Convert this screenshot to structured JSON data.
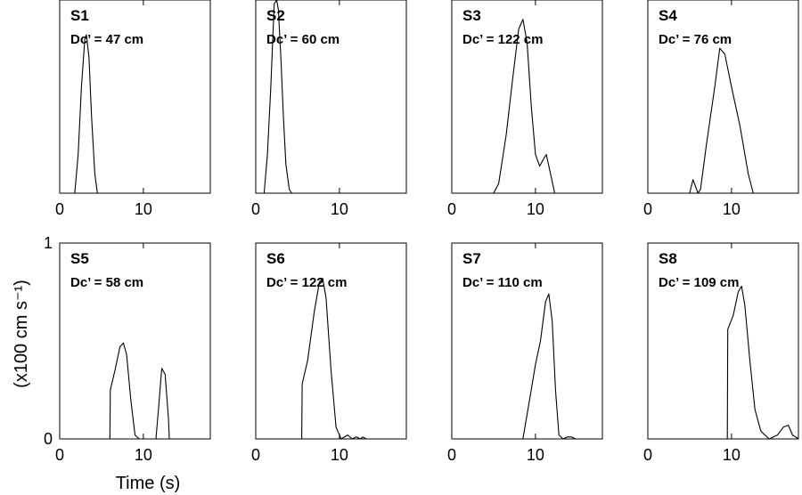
{
  "chart_data": {
    "type": "line",
    "xlabel": "Time (s)",
    "ylabel": "(x100 cm s⁻¹)",
    "xlim": [
      0,
      18
    ],
    "ylim": [
      0,
      1
    ],
    "xticks": [
      0,
      10
    ],
    "yticks": [
      0,
      1
    ],
    "grid": false,
    "panels": [
      {
        "title": "S1",
        "subtitle": "Dc’ = 47 cm",
        "x": [
          0,
          1.8,
          2.2,
          2.6,
          3.0,
          3.2,
          3.5,
          3.8,
          4.2,
          4.5,
          18
        ],
        "y": [
          0,
          0,
          0.2,
          0.55,
          0.8,
          0.82,
          0.7,
          0.4,
          0.1,
          0,
          0
        ]
      },
      {
        "title": "S2",
        "subtitle": "Dc’ = 60 cm",
        "x": [
          0,
          1.0,
          1.4,
          1.8,
          2.2,
          2.5,
          2.7,
          3.0,
          3.3,
          3.6,
          4.0,
          4.3,
          18
        ],
        "y": [
          0,
          0,
          0.2,
          0.55,
          0.98,
          1.0,
          0.95,
          0.7,
          0.4,
          0.15,
          0.02,
          0,
          0
        ]
      },
      {
        "title": "S3",
        "subtitle": "Dc’ =  122 cm",
        "x": [
          0,
          5.0,
          5.6,
          6.5,
          7.3,
          8.0,
          8.5,
          9.0,
          9.5,
          10.0,
          10.5,
          11.0,
          11.3,
          11.8,
          12.3,
          18
        ],
        "y": [
          0,
          0,
          0.05,
          0.3,
          0.6,
          0.85,
          0.9,
          0.78,
          0.45,
          0.2,
          0.14,
          0.18,
          0.2,
          0.1,
          0,
          0
        ]
      },
      {
        "title": "S4",
        "subtitle": "Dc’ = 76 cm",
        "x": [
          0,
          5.0,
          5.4,
          6.0,
          6.3,
          7.0,
          8.0,
          8.6,
          9.2,
          10.0,
          11.0,
          12.0,
          12.6,
          18
        ],
        "y": [
          0,
          0,
          0.07,
          0,
          0.02,
          0.25,
          0.55,
          0.75,
          0.72,
          0.55,
          0.35,
          0.1,
          0,
          0
        ]
      },
      {
        "title": "S5",
        "subtitle": "Dc’ = 58 cm",
        "x": [
          0,
          6.0,
          6.05,
          6.6,
          7.2,
          7.6,
          8.0,
          8.5,
          9.0,
          9.5,
          11.5,
          11.8,
          12.2,
          12.6,
          13.0,
          13.1,
          18
        ],
        "y": [
          0,
          0,
          0.25,
          0.35,
          0.47,
          0.49,
          0.43,
          0.2,
          0.02,
          0,
          0,
          0.15,
          0.36,
          0.33,
          0.1,
          0,
          0
        ]
      },
      {
        "title": "S6",
        "subtitle": "Dc’ = 122 cm",
        "x": [
          0,
          5.5,
          5.55,
          6.2,
          7.0,
          7.6,
          8.0,
          8.4,
          9.0,
          9.6,
          10.2,
          11.0,
          11.5,
          12.0,
          12.5,
          12.8,
          13.2,
          18
        ],
        "y": [
          0,
          0,
          0.28,
          0.4,
          0.65,
          0.8,
          0.82,
          0.72,
          0.35,
          0.06,
          0,
          0.02,
          0,
          0.01,
          0,
          0.01,
          0,
          0
        ]
      },
      {
        "title": "S7",
        "subtitle": "Dc’ =  110 cm",
        "x": [
          0,
          8.5,
          9.3,
          10.0,
          10.6,
          11.2,
          11.6,
          12.0,
          12.4,
          12.8,
          13.3,
          13.8,
          14.3,
          14.8,
          18
        ],
        "y": [
          0,
          0,
          0.2,
          0.38,
          0.5,
          0.7,
          0.74,
          0.6,
          0.25,
          0.02,
          0,
          0.01,
          0.01,
          0,
          0
        ]
      },
      {
        "title": "S8",
        "subtitle": "Dc’ =  109 cm",
        "x": [
          0,
          9.5,
          9.55,
          10.2,
          10.8,
          11.2,
          11.6,
          12.2,
          12.8,
          13.5,
          14.5,
          15.5,
          16.2,
          16.8,
          17.3,
          18
        ],
        "y": [
          0,
          0,
          0.56,
          0.63,
          0.75,
          0.78,
          0.68,
          0.4,
          0.15,
          0.04,
          0,
          0.02,
          0.06,
          0.07,
          0.02,
          0
        ]
      }
    ]
  }
}
